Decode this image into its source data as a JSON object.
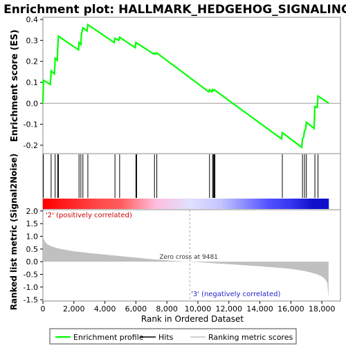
{
  "chart_data": {
    "type": "line",
    "title": "Enrichment plot: HALLMARK_HEDGEHOG_SIGNALING",
    "es_panel": {
      "ylabel": "Enrichment score (ES)",
      "ylim": [
        -0.24,
        0.41
      ],
      "yticks": [
        -0.2,
        -0.1,
        0.0,
        0.1,
        0.2,
        0.3,
        0.4
      ],
      "ytick_labels": [
        "-0.2",
        "-0.1",
        "0.0",
        "0.1",
        "0.2",
        "0.3",
        "0.4"
      ],
      "series": [
        {
          "name": "Enrichment profile",
          "color": "#00ff00",
          "x": [
            0,
            30,
            480,
            530,
            740,
            790,
            930,
            960,
            1000,
            2300,
            2330,
            2450,
            2480,
            2580,
            2850,
            2900,
            4600,
            4650,
            4900,
            4950,
            5950,
            6000,
            7150,
            7200,
            7300,
            7350,
            10700,
            10750,
            10900,
            10950,
            11000,
            11050,
            15400,
            15450,
            16700,
            16750,
            16830,
            16880,
            16950,
            17000,
            17500,
            17550,
            17700,
            17750,
            18450
          ],
          "y": [
            0.0,
            0.11,
            0.09,
            0.155,
            0.14,
            0.215,
            0.205,
            0.265,
            0.32,
            0.255,
            0.29,
            0.28,
            0.325,
            0.36,
            0.345,
            0.375,
            0.29,
            0.31,
            0.3,
            0.315,
            0.265,
            0.29,
            0.235,
            0.24,
            0.235,
            0.24,
            0.055,
            0.065,
            0.055,
            0.065,
            0.06,
            0.065,
            -0.17,
            -0.14,
            -0.21,
            -0.17,
            -0.16,
            -0.13,
            -0.125,
            -0.09,
            -0.12,
            -0.015,
            -0.02,
            0.035,
            0.0
          ]
        }
      ]
    },
    "hits_panel": {
      "hit_positions": [
        30,
        530,
        790,
        960,
        1000,
        2330,
        2450,
        2580,
        2900,
        4650,
        4950,
        6000,
        6050,
        7200,
        7350,
        10750,
        10950,
        11000,
        11050,
        11100,
        15450,
        16750,
        16880,
        17000,
        17550,
        17750
      ],
      "color_bar": {
        "stops": [
          {
            "pos": 0,
            "color": "#ff0000"
          },
          {
            "pos": 3800,
            "color": "#ff4d4d"
          },
          {
            "pos": 5000,
            "color": "#ff5c5c"
          },
          {
            "pos": 7300,
            "color": "#ffbde0"
          },
          {
            "pos": 9500,
            "color": "#e0e0ff"
          },
          {
            "pos": 11500,
            "color": "#c4c4ff"
          },
          {
            "pos": 13100,
            "color": "#8888ff"
          },
          {
            "pos": 14600,
            "color": "#5050ff"
          },
          {
            "pos": 16000,
            "color": "#3636f0"
          },
          {
            "pos": 17400,
            "color": "#1010cc"
          }
        ]
      }
    },
    "metric_panel": {
      "ylabel": "Ranked list metric (Signal2Noise)",
      "xlabel": "Rank in Ordered Dataset",
      "ylim": [
        -1.55,
        2.05
      ],
      "yticks": [
        -1.5,
        -1.0,
        -0.5,
        0.0,
        0.5,
        1.0,
        1.5,
        2.0
      ],
      "ytick_labels": [
        "-1.5",
        "-1.0",
        "-0.5",
        "0.0",
        "0.5",
        "1.0",
        "1.5",
        "2.0"
      ],
      "xlim": [
        0,
        19200
      ],
      "xticks": [
        0,
        2000,
        4000,
        6000,
        8000,
        10000,
        12000,
        14000,
        16000,
        18000
      ],
      "xtick_labels": [
        "0",
        "2,000",
        "4,000",
        "6,000",
        "8,000",
        "10,000",
        "12,000",
        "14,000",
        "16,000",
        "18,000"
      ],
      "fill_color": "#c0c0c0",
      "profile_x": [
        0,
        50,
        150,
        300,
        600,
        1000,
        1500,
        2000,
        3000,
        4000,
        5000,
        6000,
        7000,
        8000,
        9000,
        9481,
        10000,
        11000,
        12000,
        13000,
        14000,
        15000,
        15800,
        16400,
        16900,
        17300,
        17700,
        18000,
        18200,
        18350,
        18430
      ],
      "profile_y": [
        1.05,
        0.9,
        0.78,
        0.68,
        0.6,
        0.52,
        0.46,
        0.41,
        0.34,
        0.28,
        0.22,
        0.16,
        0.1,
        0.05,
        0.01,
        0.0,
        -0.02,
        -0.06,
        -0.1,
        -0.14,
        -0.18,
        -0.23,
        -0.27,
        -0.32,
        -0.37,
        -0.43,
        -0.5,
        -0.58,
        -0.68,
        -0.85,
        -1.45
      ],
      "zero_cross_x": 9481,
      "annotations": {
        "zero_cross": "Zero cross at 9481",
        "positive": "'2' (positively correlated)",
        "negative": "'3' (negatively correlated)"
      },
      "positive_color": "#cc0000",
      "negative_color": "#2222cc"
    },
    "legend": {
      "items": [
        {
          "label": "Enrichment profile",
          "color": "#00ff00"
        },
        {
          "label": "Hits",
          "color": "#000000"
        },
        {
          "label": "Ranking metric scores",
          "color": "#c0c0c0"
        }
      ]
    }
  }
}
